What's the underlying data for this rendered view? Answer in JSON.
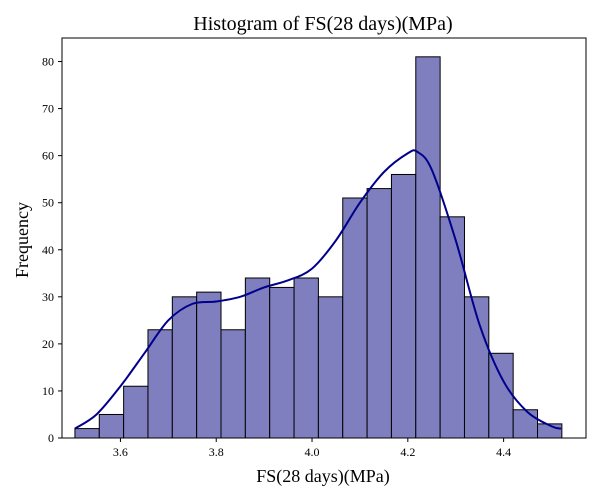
{
  "chart_data": {
    "type": "bar",
    "title": "Histogram of FS(28 days)(MPa)",
    "xlabel": "FS(28 days)(MPa)",
    "ylabel": "Frequency",
    "xlim": [
      3.478,
      4.572
    ],
    "ylim": [
      0,
      85
    ],
    "xticks": [
      3.6,
      3.8,
      4.0,
      4.2,
      4.4
    ],
    "xtick_labels": [
      "3.6",
      "3.8",
      "4.0",
      "4.2",
      "4.4"
    ],
    "yticks": [
      0,
      10,
      20,
      30,
      40,
      50,
      60,
      70,
      80
    ],
    "ytick_labels": [
      "0",
      "10",
      "20",
      "30",
      "40",
      "50",
      "60",
      "70",
      "80"
    ],
    "bin_start": 3.505,
    "bin_width": 0.05083,
    "values": [
      2,
      5,
      11,
      23,
      30,
      31,
      23,
      34,
      32,
      34,
      30,
      51,
      53,
      56,
      81,
      47,
      30,
      18,
      6,
      3
    ],
    "kde": {
      "x": [
        3.505,
        3.55,
        3.6,
        3.65,
        3.7,
        3.75,
        3.8,
        3.85,
        3.9,
        3.95,
        4.0,
        4.05,
        4.1,
        4.15,
        4.2,
        4.22,
        4.25,
        4.3,
        4.35,
        4.4,
        4.45,
        4.5,
        4.52
      ],
      "y": [
        2,
        5,
        11,
        18,
        25,
        28.5,
        29,
        30,
        32,
        33.5,
        36,
        42,
        50,
        56.5,
        60.5,
        60.8,
        57,
        42,
        24,
        12,
        5.5,
        2.5,
        2
      ]
    },
    "bar_color": "#7f7fbf",
    "bar_edge_color": "#000000",
    "kde_color": "#00008b",
    "grid": false,
    "legend": "none"
  }
}
